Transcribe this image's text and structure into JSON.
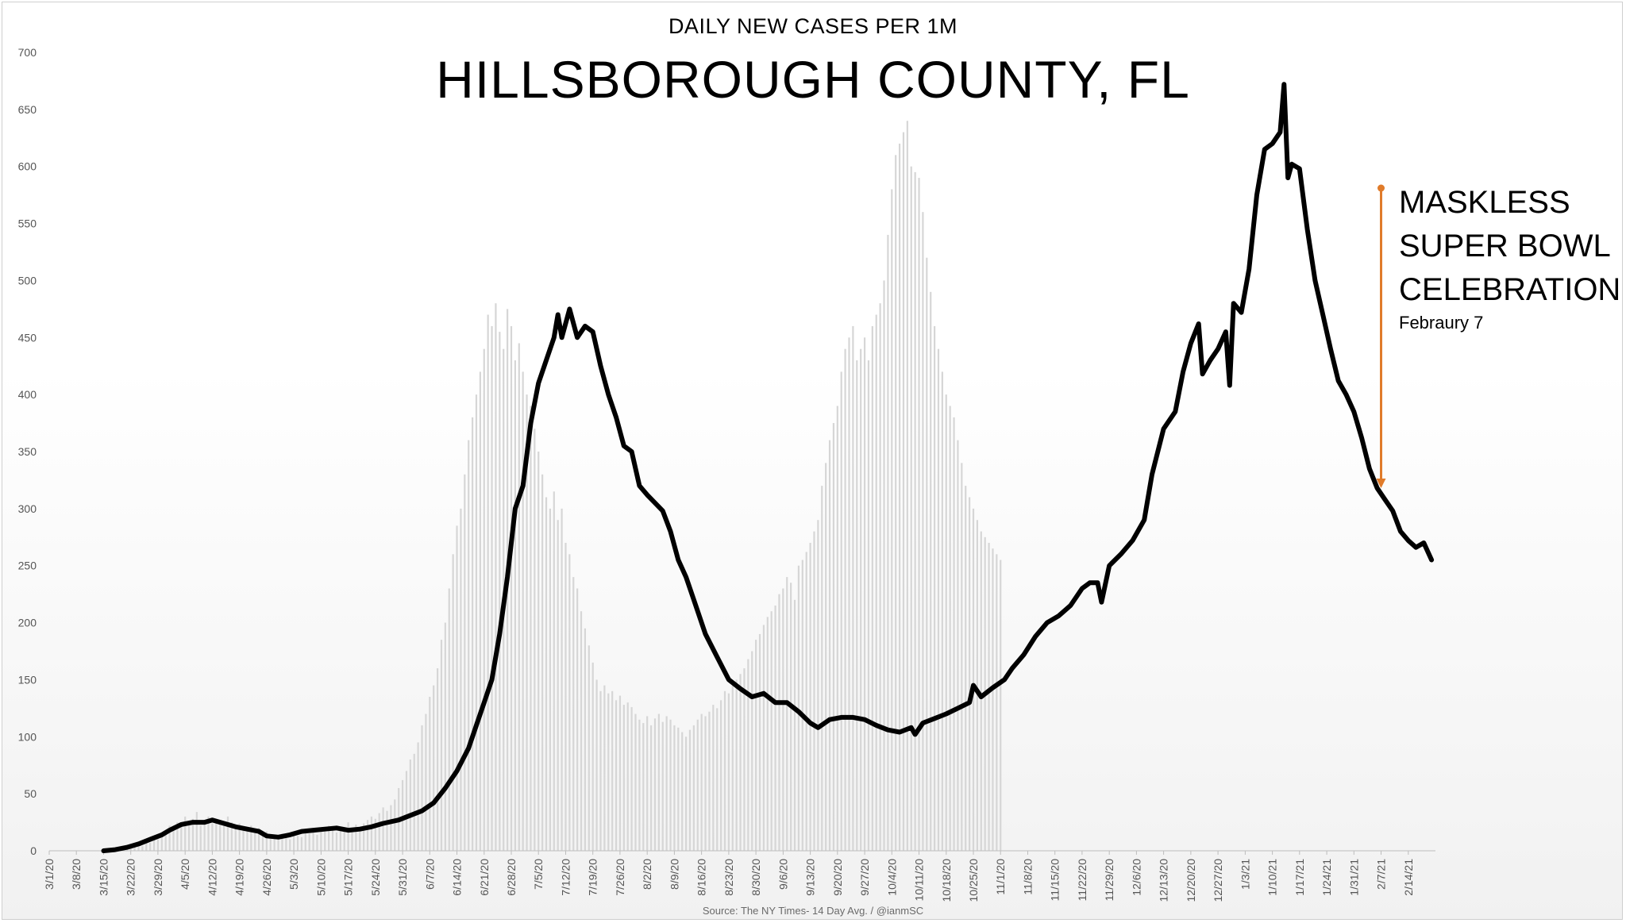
{
  "chart_data": {
    "type": "line",
    "subtitle": "DAILY NEW CASES PER 1M",
    "title": "HILLSBOROUGH COUNTY, FL",
    "source": "Source: The NY Times- 14 Day Avg. / @ianmSC",
    "ylim": [
      0,
      700
    ],
    "yticks": [
      0,
      50,
      100,
      150,
      200,
      250,
      300,
      350,
      400,
      450,
      500,
      550,
      600,
      650,
      700
    ],
    "x_start": "3/1/20",
    "xticks": [
      "3/1/20",
      "3/8/20",
      "3/15/20",
      "3/22/20",
      "3/29/20",
      "4/5/20",
      "4/12/20",
      "4/19/20",
      "4/26/20",
      "5/3/20",
      "5/10/20",
      "5/17/20",
      "5/24/20",
      "5/31/20",
      "6/7/20",
      "6/14/20",
      "6/21/20",
      "6/28/20",
      "7/5/20",
      "7/12/20",
      "7/19/20",
      "7/26/20",
      "8/2/20",
      "8/9/20",
      "8/16/20",
      "8/23/20",
      "8/30/20",
      "9/6/20",
      "9/13/20",
      "9/20/20",
      "9/27/20",
      "10/4/20",
      "10/11/20",
      "10/18/20",
      "10/25/20",
      "11/1/20",
      "11/8/20",
      "11/15/20",
      "11/22/20",
      "11/29/20",
      "12/6/20",
      "12/13/20",
      "12/20/20",
      "12/27/20",
      "1/3/21",
      "1/10/21",
      "1/17/21",
      "1/24/21",
      "1/31/21",
      "2/7/21",
      "2/14/21"
    ],
    "grid": false,
    "series": [
      {
        "type": "line",
        "color": "#000000",
        "points": [
          [
            "3/15/20",
            0
          ],
          [
            "3/18/20",
            1
          ],
          [
            "3/21/20",
            3
          ],
          [
            "3/24/20",
            6
          ],
          [
            "3/27/20",
            10
          ],
          [
            "3/30/20",
            14
          ],
          [
            "4/1/20",
            18
          ],
          [
            "4/4/20",
            23
          ],
          [
            "4/7/20",
            25
          ],
          [
            "4/10/20",
            25
          ],
          [
            "4/12/20",
            27
          ],
          [
            "4/15/20",
            24
          ],
          [
            "4/18/20",
            21
          ],
          [
            "4/21/20",
            19
          ],
          [
            "4/24/20",
            17
          ],
          [
            "4/26/20",
            13
          ],
          [
            "4/29/20",
            12
          ],
          [
            "5/2/20",
            14
          ],
          [
            "5/5/20",
            17
          ],
          [
            "5/8/20",
            18
          ],
          [
            "5/11/20",
            19
          ],
          [
            "5/14/20",
            20
          ],
          [
            "5/17/20",
            18
          ],
          [
            "5/20/20",
            19
          ],
          [
            "5/23/20",
            21
          ],
          [
            "5/26/20",
            24
          ],
          [
            "5/30/20",
            27
          ],
          [
            "6/2/20",
            31
          ],
          [
            "6/5/20",
            35
          ],
          [
            "6/8/20",
            42
          ],
          [
            "6/11/20",
            55
          ],
          [
            "6/14/20",
            70
          ],
          [
            "6/17/20",
            90
          ],
          [
            "6/19/20",
            110
          ],
          [
            "6/21/20",
            130
          ],
          [
            "6/23/20",
            150
          ],
          [
            "6/25/20",
            190
          ],
          [
            "6/27/20",
            240
          ],
          [
            "6/29/20",
            300
          ],
          [
            "7/1/20",
            320
          ],
          [
            "7/3/20",
            375
          ],
          [
            "7/5/20",
            410
          ],
          [
            "7/7/20",
            430
          ],
          [
            "7/9/20",
            450
          ],
          [
            "7/10/20",
            470
          ],
          [
            "7/11/20",
            450
          ],
          [
            "7/13/20",
            475
          ],
          [
            "7/15/20",
            450
          ],
          [
            "7/17/20",
            460
          ],
          [
            "7/19/20",
            455
          ],
          [
            "7/21/20",
            425
          ],
          [
            "7/23/20",
            400
          ],
          [
            "7/25/20",
            380
          ],
          [
            "7/27/20",
            355
          ],
          [
            "7/29/20",
            350
          ],
          [
            "7/31/20",
            320
          ],
          [
            "8/2/20",
            312
          ],
          [
            "8/4/20",
            305
          ],
          [
            "8/6/20",
            298
          ],
          [
            "8/8/20",
            280
          ],
          [
            "8/10/20",
            255
          ],
          [
            "8/12/20",
            240
          ],
          [
            "8/14/20",
            220
          ],
          [
            "8/17/20",
            190
          ],
          [
            "8/20/20",
            170
          ],
          [
            "8/23/20",
            150
          ],
          [
            "8/26/20",
            142
          ],
          [
            "8/29/20",
            135
          ],
          [
            "9/1/20",
            138
          ],
          [
            "9/4/20",
            130
          ],
          [
            "9/7/20",
            130
          ],
          [
            "9/10/20",
            122
          ],
          [
            "9/13/20",
            112
          ],
          [
            "9/15/20",
            108
          ],
          [
            "9/18/20",
            115
          ],
          [
            "9/21/20",
            117
          ],
          [
            "9/24/20",
            117
          ],
          [
            "9/27/20",
            115
          ],
          [
            "9/30/20",
            110
          ],
          [
            "10/3/20",
            106
          ],
          [
            "10/6/20",
            104
          ],
          [
            "10/9/20",
            108
          ],
          [
            "10/10/20",
            102
          ],
          [
            "10/12/20",
            112
          ],
          [
            "10/15/20",
            116
          ],
          [
            "10/18/20",
            120
          ],
          [
            "10/21/20",
            125
          ],
          [
            "10/24/20",
            130
          ],
          [
            "10/25/20",
            145
          ],
          [
            "10/27/20",
            135
          ],
          [
            "10/30/20",
            143
          ],
          [
            "11/2/20",
            150
          ],
          [
            "11/4/20",
            160
          ],
          [
            "11/7/20",
            172
          ],
          [
            "11/10/20",
            188
          ],
          [
            "11/13/20",
            200
          ],
          [
            "11/16/20",
            206
          ],
          [
            "11/19/20",
            215
          ],
          [
            "11/22/20",
            230
          ],
          [
            "11/24/20",
            235
          ],
          [
            "11/26/20",
            235
          ],
          [
            "11/27/20",
            218
          ],
          [
            "11/29/20",
            250
          ],
          [
            "12/2/20",
            260
          ],
          [
            "12/5/20",
            272
          ],
          [
            "12/8/20",
            290
          ],
          [
            "12/10/20",
            330
          ],
          [
            "12/13/20",
            370
          ],
          [
            "12/16/20",
            385
          ],
          [
            "12/18/20",
            420
          ],
          [
            "12/20/20",
            445
          ],
          [
            "12/22/20",
            462
          ],
          [
            "12/23/20",
            418
          ],
          [
            "12/25/20",
            430
          ],
          [
            "12/27/20",
            440
          ],
          [
            "12/29/20",
            455
          ],
          [
            "12/30/20",
            408
          ],
          [
            "12/31/20",
            480
          ],
          [
            "1/2/21",
            472
          ],
          [
            "1/4/21",
            510
          ],
          [
            "1/6/21",
            575
          ],
          [
            "1/8/21",
            615
          ],
          [
            "1/10/21",
            620
          ],
          [
            "1/12/21",
            630
          ],
          [
            "1/13/21",
            672
          ],
          [
            "1/14/21",
            590
          ],
          [
            "1/15/21",
            602
          ],
          [
            "1/17/21",
            598
          ],
          [
            "1/19/21",
            545
          ],
          [
            "1/21/21",
            500
          ],
          [
            "1/23/21",
            470
          ],
          [
            "1/25/21",
            440
          ],
          [
            "1/27/21",
            412
          ],
          [
            "1/29/21",
            400
          ],
          [
            "1/31/21",
            385
          ],
          [
            "2/2/21",
            362
          ],
          [
            "2/4/21",
            335
          ],
          [
            "2/6/21",
            318
          ],
          [
            "2/8/21",
            308
          ],
          [
            "2/10/21",
            298
          ],
          [
            "2/12/21",
            280
          ],
          [
            "2/14/21",
            272
          ],
          [
            "2/16/21",
            266
          ],
          [
            "2/18/21",
            270
          ],
          [
            "2/20/21",
            255
          ]
        ]
      },
      {
        "type": "bar",
        "name": "daily",
        "color": "#d6d6d6",
        "note_start": "3/1/20",
        "values": [
          0,
          0,
          0,
          0,
          0,
          0,
          0,
          0,
          0,
          0,
          0,
          0,
          0,
          0,
          0,
          1,
          0,
          2,
          1,
          3,
          2,
          4,
          5,
          6,
          4,
          8,
          7,
          12,
          10,
          14,
          18,
          22,
          20,
          25,
          24,
          30,
          26,
          28,
          34,
          22,
          27,
          30,
          24,
          28,
          26,
          22,
          30,
          25,
          21,
          24,
          19,
          18,
          22,
          16,
          20,
          15,
          17,
          14,
          13,
          12,
          15,
          11,
          10,
          14,
          13,
          12,
          16,
          15,
          20,
          14,
          18,
          17,
          22,
          19,
          16,
          21,
          18,
          25,
          20,
          23,
          19,
          24,
          27,
          30,
          28,
          33,
          38,
          35,
          40,
          45,
          55,
          62,
          70,
          80,
          85,
          95,
          110,
          120,
          135,
          145,
          160,
          185,
          200,
          230,
          260,
          285,
          300,
          330,
          360,
          380,
          400,
          420,
          440,
          470,
          460,
          480,
          455,
          440,
          475,
          460,
          430,
          445,
          420,
          400,
          390,
          370,
          350,
          330,
          310,
          300,
          315,
          290,
          300,
          270,
          260,
          240,
          230,
          210,
          195,
          180,
          165,
          150,
          140,
          145,
          138,
          140,
          132,
          136,
          128,
          130,
          126,
          120,
          115,
          112,
          118,
          110,
          116,
          120,
          113,
          118,
          115,
          110,
          108,
          104,
          100,
          106,
          110,
          115,
          120,
          118,
          122,
          128,
          125,
          132,
          140,
          138,
          145,
          150,
          155,
          160,
          168,
          175,
          185,
          190,
          198,
          205,
          210,
          215,
          225,
          230,
          240,
          235,
          220,
          250,
          255,
          262,
          270,
          280,
          290,
          320,
          340,
          360,
          375,
          390,
          420,
          440,
          450,
          460,
          430,
          440,
          450,
          430,
          460,
          470,
          480,
          500,
          540,
          580,
          610,
          620,
          630,
          640,
          600,
          595,
          590,
          560,
          520,
          490,
          460,
          440,
          420,
          400,
          390,
          380,
          360,
          340,
          320,
          310,
          300,
          290,
          280,
          275,
          270,
          265,
          260,
          255
        ]
      }
    ],
    "annotation": {
      "lines": [
        "MASKLESS",
        "SUPER BOWL",
        "CELEBRATION"
      ],
      "date_label": "Febraury 7",
      "at": "2/7/21",
      "from_value": 581,
      "to_value": 318,
      "color": "#e07b2a"
    }
  }
}
